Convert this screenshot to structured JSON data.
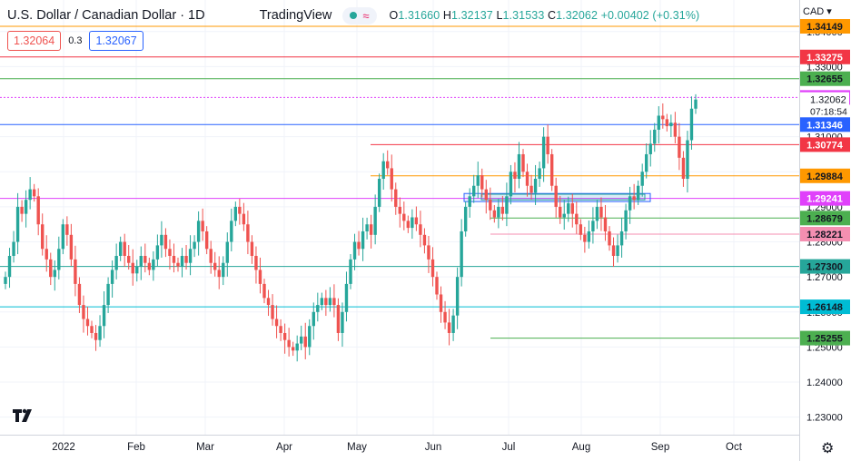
{
  "header": {
    "symbol_title": "U.S. Dollar / Canadian Dollar · 1D",
    "brand": "TradingView",
    "status_icon": "wave-icon",
    "ohlc": {
      "o_label": "O",
      "o": "1.31660",
      "h_label": "H",
      "h": "1.32137",
      "l_label": "L",
      "l": "1.31533",
      "c_label": "C",
      "c": "1.32062",
      "change": "+0.00402 (+0.31%)"
    }
  },
  "trade": {
    "sell": "1.32064",
    "spread": "0.3",
    "buy": "1.32067"
  },
  "currency_button": "CAD",
  "colors": {
    "up": "#26a69a",
    "down": "#ef5350"
  },
  "price_axis": {
    "ticks": [
      "1.23000",
      "1.24000",
      "1.25000",
      "1.26000",
      "1.27000",
      "1.28000",
      "1.29000",
      "1.30000",
      "1.31000",
      "1.33000",
      "1.34000"
    ],
    "countdown": "07:18:54"
  },
  "levels": [
    {
      "label": "1.34149",
      "color": "#ff9800",
      "text_color": "#131722",
      "line_start": "begin"
    },
    {
      "label": "1.33275",
      "color": "#f23645",
      "text_color": "#ffffff",
      "line_start": "begin"
    },
    {
      "label": "1.32655",
      "color": "#4caf50",
      "text_color": "#131722",
      "line_start": "begin"
    },
    {
      "label": "1.32120",
      "color": "#e040fb",
      "text_color": "#ffffff",
      "line_start": "begin",
      "dashed": true
    },
    {
      "label": "1.32062",
      "color": "#26a69a",
      "text_color": "#131722",
      "line_start": "none",
      "current": true
    },
    {
      "label": "1.31346",
      "color": "#2962ff",
      "text_color": "#ffffff",
      "line_start": "begin"
    },
    {
      "label": "1.30774",
      "color": "#f23645",
      "text_color": "#ffffff",
      "line_start": "May"
    },
    {
      "label": "1.29884",
      "color": "#ff9800",
      "text_color": "#131722",
      "line_start": "May"
    },
    {
      "label": "1.29241",
      "color": "#e040fb",
      "text_color": "#ffffff",
      "line_start": "begin"
    },
    {
      "label": "1.28679",
      "color": "#4caf50",
      "text_color": "#131722",
      "line_start": "Jun"
    },
    {
      "label": "1.28221",
      "color": "#f48fb1",
      "text_color": "#131722",
      "line_start": "Jun"
    },
    {
      "label": "1.27300",
      "color": "#26a69a",
      "text_color": "#131722",
      "line_start": "begin"
    },
    {
      "label": "1.26148",
      "color": "#00bcd4",
      "text_color": "#131722",
      "line_start": "begin"
    },
    {
      "label": "1.25255",
      "color": "#4caf50",
      "text_color": "#131722",
      "line_start": "Jun"
    }
  ],
  "time_axis": {
    "labels": [
      "2022",
      "Feb",
      "Mar",
      "Apr",
      "May",
      "Jun",
      "Jul",
      "Aug",
      "Sep",
      "Oct"
    ]
  },
  "chart_data": {
    "type": "candlestick",
    "y_range": [
      1.225,
      1.349
    ],
    "candles_close_path": [
      1.27,
      1.276,
      1.28,
      1.29,
      1.288,
      1.292,
      1.295,
      1.293,
      1.285,
      1.278,
      1.275,
      1.27,
      1.272,
      1.278,
      1.285,
      1.282,
      1.275,
      1.268,
      1.262,
      1.258,
      1.256,
      1.254,
      1.252,
      1.256,
      1.262,
      1.268,
      1.272,
      1.276,
      1.28,
      1.276,
      1.274,
      1.271,
      1.273,
      1.276,
      1.274,
      1.272,
      1.275,
      1.279,
      1.282,
      1.278,
      1.276,
      1.274,
      1.273,
      1.276,
      1.274,
      1.278,
      1.28,
      1.286,
      1.283,
      1.278,
      1.274,
      1.272,
      1.27,
      1.274,
      1.28,
      1.286,
      1.29,
      1.288,
      1.285,
      1.28,
      1.276,
      1.272,
      1.268,
      1.264,
      1.262,
      1.258,
      1.256,
      1.254,
      1.252,
      1.25,
      1.249,
      1.251,
      1.253,
      1.25,
      1.256,
      1.26,
      1.262,
      1.264,
      1.262,
      1.264,
      1.262,
      1.254,
      1.26,
      1.268,
      1.275,
      1.28,
      1.278,
      1.283,
      1.285,
      1.282,
      1.29,
      1.298,
      1.303,
      1.301,
      1.295,
      1.29,
      1.288,
      1.286,
      1.284,
      1.287,
      1.285,
      1.282,
      1.279,
      1.275,
      1.27,
      1.265,
      1.26,
      1.257,
      1.254,
      1.259,
      1.27,
      1.283,
      1.29,
      1.293,
      1.296,
      1.299,
      1.295,
      1.292,
      1.289,
      1.287,
      1.29,
      1.288,
      1.293,
      1.3,
      1.298,
      1.305,
      1.3,
      1.296,
      1.294,
      1.298,
      1.301,
      1.31,
      1.305,
      1.296,
      1.29,
      1.287,
      1.288,
      1.291,
      1.288,
      1.285,
      1.282,
      1.28,
      1.283,
      1.286,
      1.29,
      1.287,
      1.283,
      1.279,
      1.276,
      1.279,
      1.283,
      1.289,
      1.293,
      1.292,
      1.296,
      1.3,
      1.305,
      1.308,
      1.312,
      1.316,
      1.315,
      1.313,
      1.314,
      1.31,
      1.304,
      1.298,
      1.309,
      1.318,
      1.3206
    ]
  }
}
